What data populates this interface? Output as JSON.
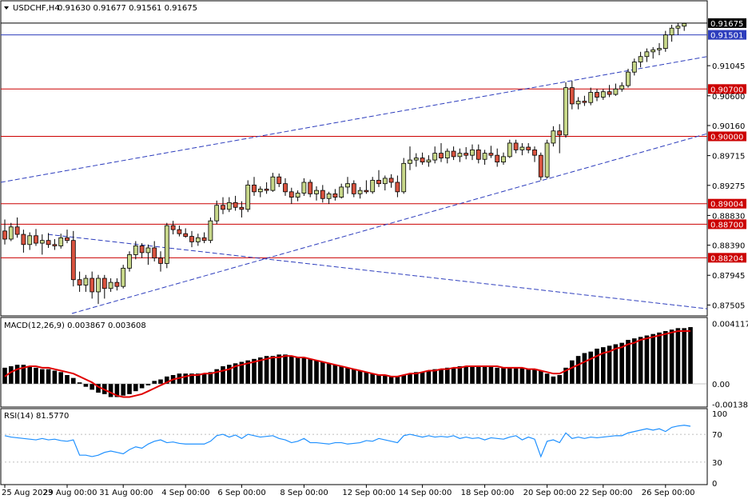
{
  "header": {
    "menu_icon": "triangle-down-icon",
    "symbol": "USDCHF,H4",
    "ohlc": "0.91630 0.91677 0.91561 0.91675"
  },
  "price_axis": {
    "labels": [
      "0.91045",
      "0.90600",
      "0.90160",
      "0.89715",
      "0.89275",
      "0.88830",
      "0.88390",
      "0.87945",
      "0.87505"
    ]
  },
  "levels": {
    "current": {
      "label": "0.91675",
      "value": 0.91675,
      "color": "#000000"
    },
    "blue": {
      "label": "0.91501",
      "value": 0.91501,
      "color": "#2d3dbd"
    },
    "red": [
      {
        "label": "0.90700",
        "value": 0.907
      },
      {
        "label": "0.90000",
        "value": 0.9
      },
      {
        "label": "0.89004",
        "value": 0.89004
      },
      {
        "label": "0.88700",
        "value": 0.887
      },
      {
        "label": "0.88204",
        "value": 0.88204
      }
    ],
    "red_color": "#cc0000"
  },
  "macd": {
    "label": "MACD(12,26,9) 0.003867 0.003608",
    "axis": [
      "0.004117",
      "0.00",
      "-0.001385"
    ]
  },
  "rsi": {
    "label": "RSI(14) 81.5770",
    "axis": [
      "100",
      "70",
      "30",
      "0"
    ]
  },
  "time_axis": {
    "labels": [
      "25 Aug 2023",
      "29 Aug 00:00",
      "31 Aug 00:00",
      "4 Sep 00:00",
      "6 Sep 00:00",
      "8 Sep 00:00",
      "12 Sep 00:00",
      "14 Sep 00:00",
      "18 Sep 00:00",
      "20 Sep 00:00",
      "22 Sep 00:00",
      "26 Sep 00:00"
    ]
  },
  "colors": {
    "bull_body": "#c8d88a",
    "bear_body": "#d9533f",
    "candle_wick": "#000000",
    "macd_signal": "#e00000",
    "rsi_line": "#1e90ff",
    "trend_line": "#2d3dbd"
  },
  "chart_data": [
    {
      "type": "candlestick",
      "title": "USDCHF,H4",
      "ylim": [
        0.8738,
        0.9178
      ],
      "candles": [
        [
          0.886,
          0.8877,
          0.884,
          0.8848
        ],
        [
          0.8848,
          0.8872,
          0.8845,
          0.8866
        ],
        [
          0.8866,
          0.888,
          0.885,
          0.8855
        ],
        [
          0.8855,
          0.8862,
          0.8828,
          0.884
        ],
        [
          0.884,
          0.8858,
          0.8832,
          0.8853
        ],
        [
          0.8853,
          0.8863,
          0.8838,
          0.8842
        ],
        [
          0.8842,
          0.8855,
          0.8825,
          0.8846
        ],
        [
          0.8846,
          0.8857,
          0.8835,
          0.884
        ],
        [
          0.884,
          0.8848,
          0.8832,
          0.8838
        ],
        [
          0.8838,
          0.8856,
          0.8834,
          0.885
        ],
        [
          0.885,
          0.8862,
          0.8842,
          0.8846
        ],
        [
          0.8846,
          0.886,
          0.8778,
          0.8788
        ],
        [
          0.8788,
          0.88,
          0.877,
          0.878
        ],
        [
          0.878,
          0.8795,
          0.877,
          0.879
        ],
        [
          0.879,
          0.88,
          0.876,
          0.877
        ],
        [
          0.877,
          0.8795,
          0.8752,
          0.879
        ],
        [
          0.879,
          0.8795,
          0.876,
          0.8775
        ],
        [
          0.8775,
          0.879,
          0.877,
          0.8784
        ],
        [
          0.8784,
          0.879,
          0.8772,
          0.8778
        ],
        [
          0.8778,
          0.881,
          0.8775,
          0.8805
        ],
        [
          0.8805,
          0.883,
          0.88,
          0.8825
        ],
        [
          0.8825,
          0.8845,
          0.8818,
          0.8838
        ],
        [
          0.8838,
          0.8842,
          0.882,
          0.8828
        ],
        [
          0.8828,
          0.884,
          0.881,
          0.8835
        ],
        [
          0.8835,
          0.8845,
          0.8815,
          0.882
        ],
        [
          0.882,
          0.883,
          0.88,
          0.8812
        ],
        [
          0.8812,
          0.8872,
          0.8805,
          0.8868
        ],
        [
          0.8868,
          0.8875,
          0.8855,
          0.8862
        ],
        [
          0.8862,
          0.8868,
          0.8852,
          0.8856
        ],
        [
          0.8856,
          0.8864,
          0.885,
          0.8852
        ],
        [
          0.8852,
          0.886,
          0.8836,
          0.8844
        ],
        [
          0.8844,
          0.8856,
          0.8838,
          0.885
        ],
        [
          0.885,
          0.8858,
          0.8842,
          0.8846
        ],
        [
          0.8846,
          0.888,
          0.8842,
          0.8875
        ],
        [
          0.8875,
          0.8905,
          0.887,
          0.8898
        ],
        [
          0.8898,
          0.891,
          0.8885,
          0.8892
        ],
        [
          0.8892,
          0.891,
          0.8888,
          0.8902
        ],
        [
          0.8902,
          0.8912,
          0.889,
          0.8895
        ],
        [
          0.8895,
          0.8904,
          0.888,
          0.8892
        ],
        [
          0.8892,
          0.8935,
          0.8888,
          0.8928
        ],
        [
          0.8928,
          0.894,
          0.8912,
          0.8918
        ],
        [
          0.8918,
          0.8926,
          0.891,
          0.8922
        ],
        [
          0.8922,
          0.8932,
          0.8915,
          0.892
        ],
        [
          0.892,
          0.8946,
          0.8918,
          0.894
        ],
        [
          0.894,
          0.8945,
          0.8925,
          0.893
        ],
        [
          0.893,
          0.8938,
          0.8912,
          0.8918
        ],
        [
          0.8918,
          0.8924,
          0.89,
          0.891
        ],
        [
          0.891,
          0.892,
          0.8904,
          0.8916
        ],
        [
          0.8916,
          0.8938,
          0.8912,
          0.8932
        ],
        [
          0.8932,
          0.8936,
          0.891,
          0.8915
        ],
        [
          0.8915,
          0.8926,
          0.8905,
          0.892
        ],
        [
          0.892,
          0.8928,
          0.8902,
          0.8908
        ],
        [
          0.8908,
          0.8918,
          0.89,
          0.8915
        ],
        [
          0.8915,
          0.8922,
          0.8905,
          0.891
        ],
        [
          0.891,
          0.893,
          0.8908,
          0.8925
        ],
        [
          0.8925,
          0.894,
          0.8915,
          0.893
        ],
        [
          0.893,
          0.8935,
          0.891,
          0.8915
        ],
        [
          0.8915,
          0.8925,
          0.8908,
          0.892
        ],
        [
          0.892,
          0.8935,
          0.8915,
          0.8918
        ],
        [
          0.8918,
          0.894,
          0.8915,
          0.8935
        ],
        [
          0.8935,
          0.895,
          0.8925,
          0.893
        ],
        [
          0.893,
          0.8942,
          0.892,
          0.8938
        ],
        [
          0.8938,
          0.8944,
          0.8924,
          0.8932
        ],
        [
          0.8932,
          0.8942,
          0.891,
          0.8918
        ],
        [
          0.8918,
          0.8968,
          0.8915,
          0.896
        ],
        [
          0.896,
          0.8985,
          0.895,
          0.8965
        ],
        [
          0.8965,
          0.8975,
          0.8955,
          0.8968
        ],
        [
          0.8968,
          0.8976,
          0.8958,
          0.8962
        ],
        [
          0.8962,
          0.8972,
          0.8955,
          0.8965
        ],
        [
          0.8965,
          0.8985,
          0.896,
          0.8975
        ],
        [
          0.8975,
          0.899,
          0.8962,
          0.8968
        ],
        [
          0.8968,
          0.8982,
          0.896,
          0.8978
        ],
        [
          0.8978,
          0.8985,
          0.8965,
          0.897
        ],
        [
          0.897,
          0.8982,
          0.8962,
          0.8975
        ],
        [
          0.8975,
          0.8984,
          0.8966,
          0.8972
        ],
        [
          0.8972,
          0.8988,
          0.8965,
          0.898
        ],
        [
          0.898,
          0.8988,
          0.896,
          0.8966
        ],
        [
          0.8966,
          0.898,
          0.8958,
          0.8975
        ],
        [
          0.8975,
          0.8986,
          0.8968,
          0.8972
        ],
        [
          0.8972,
          0.8982,
          0.8955,
          0.8962
        ],
        [
          0.8962,
          0.8976,
          0.8958,
          0.897
        ],
        [
          0.897,
          0.8995,
          0.8968,
          0.899
        ],
        [
          0.899,
          0.8995,
          0.8975,
          0.898
        ],
        [
          0.898,
          0.899,
          0.8972,
          0.8984
        ],
        [
          0.8984,
          0.899,
          0.8975,
          0.898
        ],
        [
          0.898,
          0.8985,
          0.8962,
          0.8972
        ],
        [
          0.8972,
          0.8976,
          0.8935,
          0.894
        ],
        [
          0.894,
          0.8995,
          0.8938,
          0.899
        ],
        [
          0.899,
          0.9015,
          0.8985,
          0.9008
        ],
        [
          0.9008,
          0.9018,
          0.8975,
          0.9002
        ],
        [
          0.9002,
          0.908,
          0.8998,
          0.9072
        ],
        [
          0.9072,
          0.9082,
          0.904,
          0.9048
        ],
        [
          0.9048,
          0.9058,
          0.904,
          0.9052
        ],
        [
          0.9052,
          0.906,
          0.9045,
          0.905
        ],
        [
          0.905,
          0.9072,
          0.9046,
          0.9065
        ],
        [
          0.9065,
          0.907,
          0.9052,
          0.9058
        ],
        [
          0.9058,
          0.907,
          0.9054,
          0.9066
        ],
        [
          0.9066,
          0.9076,
          0.9058,
          0.9062
        ],
        [
          0.9062,
          0.9078,
          0.906,
          0.907
        ],
        [
          0.907,
          0.908,
          0.9066,
          0.9075
        ],
        [
          0.9075,
          0.91,
          0.9072,
          0.9095
        ],
        [
          0.9095,
          0.9115,
          0.909,
          0.911
        ],
        [
          0.911,
          0.9125,
          0.9102,
          0.9118
        ],
        [
          0.9118,
          0.913,
          0.911,
          0.9125
        ],
        [
          0.9125,
          0.9132,
          0.9115,
          0.9128
        ],
        [
          0.9128,
          0.9138,
          0.912,
          0.913
        ],
        [
          0.913,
          0.9156,
          0.9125,
          0.915
        ],
        [
          0.915,
          0.9165,
          0.914,
          0.916
        ],
        [
          0.916,
          0.9168,
          0.915,
          0.9163
        ],
        [
          0.9163,
          0.9168,
          0.9156,
          0.9167
        ]
      ]
    },
    {
      "type": "bar",
      "title": "MACD(12,26,9) 0.003867 0.003608",
      "ylim": [
        -0.0015,
        0.0042
      ],
      "series": [
        {
          "name": "MACD",
          "values": [
            0.0011,
            0.0012,
            0.0013,
            0.0013,
            0.0012,
            0.0011,
            0.001,
            0.001,
            0.0009,
            0.0008,
            0.0006,
            0.0004,
            0.0001,
            -0.0002,
            -0.0004,
            -0.0006,
            -0.0007,
            -0.0009,
            -0.0009,
            -0.0008,
            -0.0007,
            -0.0005,
            -0.0003,
            -0.0001,
            0.0002,
            0.0003,
            0.0005,
            0.0006,
            0.0007,
            0.0007,
            0.0007,
            0.0007,
            0.0007,
            0.0008,
            0.001,
            0.0012,
            0.0013,
            0.0014,
            0.0015,
            0.0016,
            0.0017,
            0.0018,
            0.0019,
            0.0019,
            0.002,
            0.002,
            0.0019,
            0.0018,
            0.0018,
            0.0017,
            0.0016,
            0.0015,
            0.0014,
            0.0013,
            0.0012,
            0.0011,
            0.001,
            0.0009,
            0.0008,
            0.0007,
            0.0006,
            0.0006,
            0.0005,
            0.0005,
            0.0006,
            0.0007,
            0.0008,
            0.0008,
            0.0009,
            0.001,
            0.001,
            0.0011,
            0.0011,
            0.0012,
            0.0012,
            0.0012,
            0.0012,
            0.0012,
            0.0012,
            0.0011,
            0.0011,
            0.0011,
            0.0011,
            0.0011,
            0.001,
            0.001,
            0.0009,
            0.0007,
            0.0005,
            0.0006,
            0.0011,
            0.0016,
            0.0019,
            0.0021,
            0.0022,
            0.0024,
            0.0025,
            0.0026,
            0.0027,
            0.0028,
            0.003,
            0.0031,
            0.0032,
            0.0033,
            0.0034,
            0.0035,
            0.0036,
            0.0037,
            0.0038,
            0.0038,
            0.00387
          ]
        },
        {
          "name": "Signal",
          "values": [
            0.0005,
            0.0008,
            0.001,
            0.0011,
            0.0012,
            0.0012,
            0.0011,
            0.0011,
            0.001,
            0.0009,
            0.0008,
            0.0007,
            0.0005,
            0.0003,
            0.0001,
            -0.0002,
            -0.0004,
            -0.0006,
            -0.0008,
            -0.0009,
            -0.0009,
            -0.0008,
            -0.0007,
            -0.0005,
            -0.0003,
            -0.0001,
            0.0001,
            0.0003,
            0.0004,
            0.0005,
            0.0006,
            0.0006,
            0.0007,
            0.0007,
            0.0008,
            0.0009,
            0.001,
            0.0012,
            0.0013,
            0.0014,
            0.0015,
            0.0016,
            0.0017,
            0.0018,
            0.0018,
            0.0019,
            0.0019,
            0.0018,
            0.0018,
            0.0017,
            0.0016,
            0.0015,
            0.0014,
            0.0013,
            0.0012,
            0.0011,
            0.001,
            0.0009,
            0.0008,
            0.0007,
            0.0006,
            0.0006,
            0.0005,
            0.0005,
            0.0006,
            0.0007,
            0.0007,
            0.0008,
            0.0009,
            0.0009,
            0.001,
            0.001,
            0.0011,
            0.0011,
            0.0012,
            0.0012,
            0.0012,
            0.0012,
            0.0012,
            0.0012,
            0.0011,
            0.0011,
            0.0011,
            0.0011,
            0.001,
            0.001,
            0.0009,
            0.0008,
            0.0007,
            0.0007,
            0.0009,
            0.0011,
            0.0013,
            0.0015,
            0.0017,
            0.0019,
            0.0021,
            0.0022,
            0.0024,
            0.0025,
            0.0027,
            0.0028,
            0.003,
            0.0031,
            0.0032,
            0.0033,
            0.0034,
            0.0035,
            0.0036,
            0.0036,
            0.003608
          ]
        }
      ]
    },
    {
      "type": "line",
      "title": "RSI(14) 81.5770",
      "ylim": [
        0,
        100
      ],
      "series": [
        {
          "name": "RSI",
          "values": [
            68,
            66,
            65,
            64,
            63,
            62,
            64,
            62,
            63,
            61,
            60,
            62,
            40,
            40,
            38,
            40,
            44,
            46,
            44,
            42,
            48,
            52,
            50,
            56,
            60,
            62,
            58,
            59,
            57,
            56,
            56,
            56,
            56,
            60,
            68,
            70,
            66,
            69,
            64,
            70,
            68,
            66,
            67,
            68,
            64,
            62,
            58,
            60,
            64,
            58,
            58,
            57,
            56,
            58,
            58,
            56,
            57,
            58,
            61,
            60,
            64,
            62,
            60,
            58,
            68,
            70,
            68,
            66,
            68,
            66,
            67,
            66,
            68,
            64,
            66,
            64,
            65,
            62,
            65,
            64,
            63,
            66,
            68,
            62,
            66,
            63,
            38,
            60,
            62,
            58,
            72,
            64,
            66,
            64,
            66,
            65,
            66,
            67,
            68,
            68,
            72,
            74,
            76,
            78,
            76,
            78,
            74,
            80,
            82,
            83,
            81.577
          ]
        }
      ]
    }
  ]
}
